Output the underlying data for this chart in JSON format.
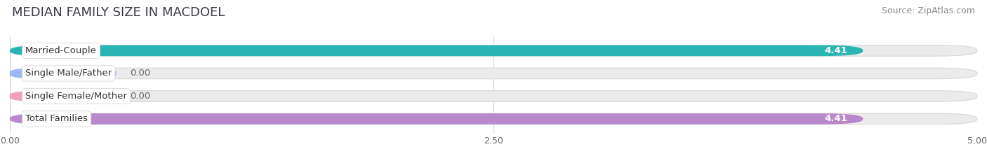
{
  "title": "MEDIAN FAMILY SIZE IN MACDOEL",
  "source": "Source: ZipAtlas.com",
  "categories": [
    "Married-Couple",
    "Single Male/Father",
    "Single Female/Mother",
    "Total Families"
  ],
  "values": [
    4.41,
    0.0,
    0.0,
    4.41
  ],
  "bar_colors": [
    "#2ab5b5",
    "#9eb8f0",
    "#f0a0b8",
    "#b888cc"
  ],
  "bar_bg_color": "#ebebeb",
  "xlim": [
    0,
    5.0
  ],
  "xticks": [
    0.0,
    2.5,
    5.0
  ],
  "xtick_labels": [
    "0.00",
    "2.50",
    "5.00"
  ],
  "value_label_color": "#ffffff",
  "value_label_color_zero": "#666666",
  "title_fontsize": 13,
  "source_fontsize": 9,
  "bar_label_fontsize": 9.5,
  "tick_fontsize": 9,
  "bar_height": 0.48,
  "background_color": "#ffffff",
  "zero_bar_extent": 0.55
}
